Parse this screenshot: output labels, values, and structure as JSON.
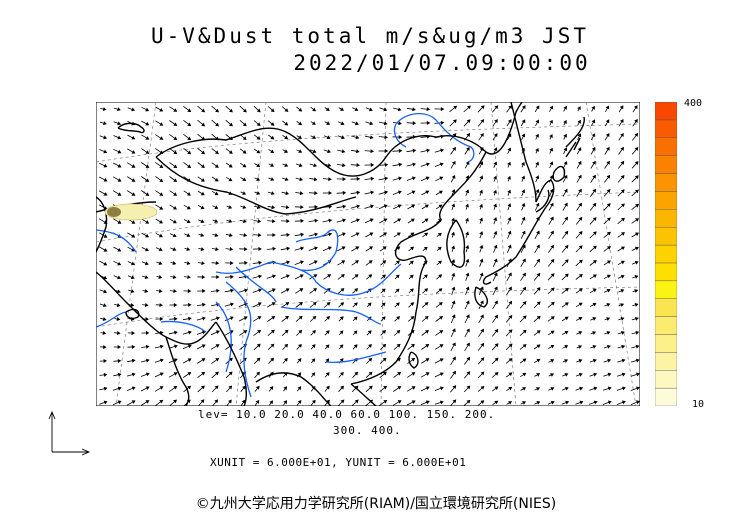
{
  "title": {
    "line1": "U-V&Dust total m/s&ug/m3 JST",
    "line2": "2022/01/07.09:00:00"
  },
  "colorbar": {
    "max_label": "400",
    "min_label": "10",
    "colors": [
      "#fdfbd8",
      "#fcf8c0",
      "#fcf4a4",
      "#fbf08a",
      "#fbeb6e",
      "#fae452",
      "#fbf314",
      "#fce000",
      "#fcd200",
      "#fcc400",
      "#fcb600",
      "#fba400",
      "#fb9400",
      "#fa8200",
      "#fa7000",
      "#f95c00",
      "#f84800"
    ]
  },
  "levels": {
    "line1": "lev= 10.0 20.0 40.0 60.0 100. 150. 200.",
    "line2": "300. 400."
  },
  "units": "XUNIT = 6.000E+01, YUNIT = 6.000E+01",
  "copyright": "©九州大学応用力学研究所(RIAM)/国立環境研究所(NIES)",
  "map": {
    "coast_color": "#000000",
    "river_color": "#1560ff",
    "grid_color": "#777777",
    "dust_fill": "#f5f0b0",
    "dust_core": "#7a6a30"
  }
}
